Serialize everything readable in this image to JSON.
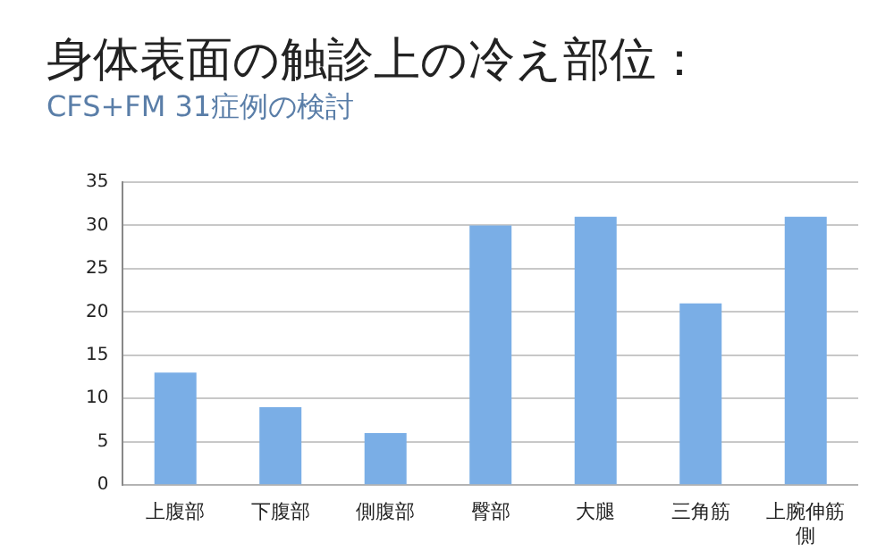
{
  "chart_data": {
    "type": "bar",
    "title": "身体表面の触診上の冷え部位：",
    "subtitle": "CFS+FM 31症例の検討",
    "categories": [
      "上腹部",
      "下腹部",
      "側腹部",
      "臀部",
      "大腿",
      "三角筋",
      "上腕伸筋側"
    ],
    "values": [
      13,
      9,
      6,
      30,
      31,
      21,
      31
    ],
    "color": "#7aaee6",
    "ylim": [
      0,
      35
    ],
    "yticks": [
      0,
      5,
      10,
      15,
      20,
      25,
      30,
      35
    ],
    "grid": "y"
  }
}
